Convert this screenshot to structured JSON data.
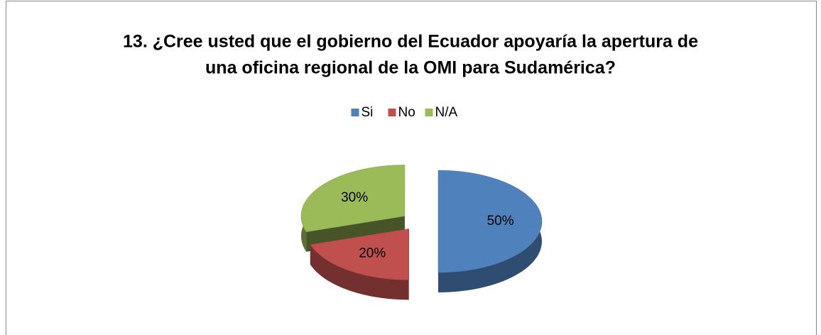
{
  "chart_data": {
    "type": "pie3d",
    "title": [
      "13. ¿Cree usted que el gobierno del Ecuador apoyaría la apertura de",
      "una oficina regional de la OMI para Sudamérica?"
    ],
    "categories": [
      "Si",
      "No",
      "N/A"
    ],
    "values": [
      50,
      20,
      30
    ],
    "value_labels": [
      "50%",
      "20%",
      "30%"
    ],
    "colors": [
      "#4f81bd",
      "#c0504d",
      "#9bbb59"
    ],
    "legend": "top"
  }
}
